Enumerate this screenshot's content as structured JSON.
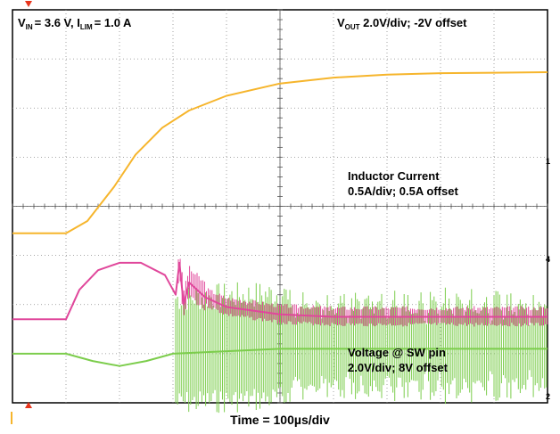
{
  "chart_data": {
    "type": "line",
    "conditions": {
      "vin_symbol": "V",
      "vin_sub": "IN",
      "vin_value": "= 3.6 V, I",
      "ilim_sub": "LIM",
      "ilim_value": "= 1.0 A"
    },
    "xlabel": "Time = 100µs/div",
    "x_divisions": 10,
    "y_divisions": 8,
    "grid": true,
    "series": [
      {
        "name": "Vout",
        "label_symbol": "V",
        "label_sub": "OUT",
        "label_rest": " 2.0V/div; -2V offset",
        "color": "#f6b52c",
        "marker": "1",
        "points": [
          [
            0,
            4.55
          ],
          [
            1,
            4.55
          ],
          [
            1.4,
            4.3
          ],
          [
            1.9,
            3.6
          ],
          [
            2.3,
            2.95
          ],
          [
            2.8,
            2.4
          ],
          [
            3.3,
            2.05
          ],
          [
            4,
            1.75
          ],
          [
            5,
            1.5
          ],
          [
            6,
            1.38
          ],
          [
            7,
            1.32
          ],
          [
            8,
            1.29
          ],
          [
            9,
            1.28
          ],
          [
            10,
            1.27
          ]
        ]
      },
      {
        "name": "Inductor Current",
        "label_line1": "Inductor Current",
        "label_line2": "0.5A/div; 0.5A offset",
        "color": "#e0479b",
        "marker": "4",
        "points": [
          [
            0,
            6.3
          ],
          [
            1,
            6.3
          ],
          [
            1.25,
            5.7
          ],
          [
            1.6,
            5.3
          ],
          [
            2,
            5.15
          ],
          [
            2.4,
            5.15
          ],
          [
            2.85,
            5.4
          ],
          [
            3.05,
            5.8
          ],
          [
            3.12,
            5.15
          ],
          [
            3.2,
            6.0
          ],
          [
            3.3,
            5.55
          ],
          [
            3.6,
            5.85
          ],
          [
            4,
            6.05
          ],
          [
            5,
            6.2
          ],
          [
            6,
            6.25
          ],
          [
            7,
            6.25
          ],
          [
            8,
            6.25
          ],
          [
            9,
            6.25
          ],
          [
            10,
            6.25
          ]
        ]
      },
      {
        "name": "Voltage @ SW pin",
        "label_line1": "Voltage @ SW pin",
        "label_line2": "2.0V/div; 8V offset",
        "color": "#7ccd4c",
        "marker": "2",
        "points": [
          [
            0,
            7.0
          ],
          [
            1,
            7.0
          ],
          [
            1.5,
            7.15
          ],
          [
            2,
            7.25
          ],
          [
            2.5,
            7.15
          ],
          [
            3,
            7.0
          ],
          [
            4,
            6.95
          ],
          [
            5,
            6.9
          ],
          [
            6,
            6.9
          ],
          [
            7,
            6.9
          ],
          [
            8,
            6.9
          ],
          [
            9,
            6.9
          ],
          [
            10,
            6.9
          ]
        ]
      }
    ]
  }
}
